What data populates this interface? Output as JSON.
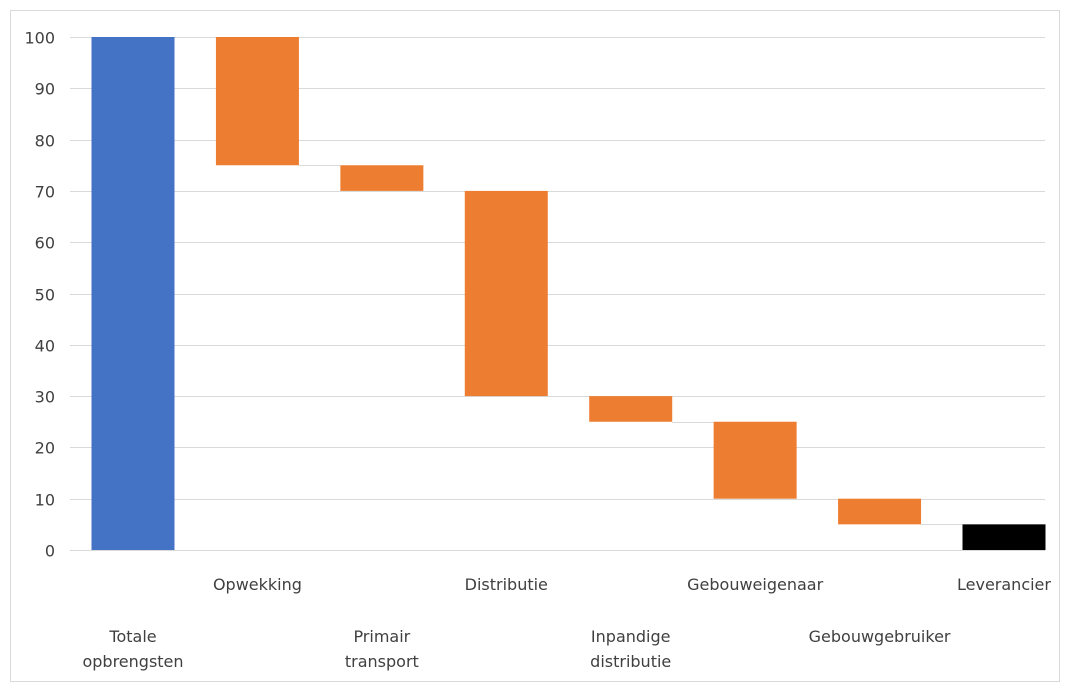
{
  "chart_data": {
    "type": "bar",
    "subtype": "waterfall",
    "categories": [
      "Totale opbrengsten",
      "Opwekking",
      "Primair transport",
      "Distributie",
      "Inpandige distributie",
      "Gebouweigenaar",
      "Gebouwgebruiker",
      "Leverancier"
    ],
    "category_label_lines": [
      [
        "Totale",
        "opbrengsten"
      ],
      [
        "Opwekking"
      ],
      [
        "Primair",
        "transport"
      ],
      [
        "Distributie"
      ],
      [
        "Inpandige",
        "distributie"
      ],
      [
        "Gebouweigenaar"
      ],
      [
        "Gebouwgebruiker"
      ],
      [
        "Leverancier"
      ]
    ],
    "bars": [
      {
        "low": 0,
        "high": 100,
        "kind": "total"
      },
      {
        "low": 75,
        "high": 100,
        "kind": "decrease"
      },
      {
        "low": 70,
        "high": 75,
        "kind": "decrease"
      },
      {
        "low": 30,
        "high": 70,
        "kind": "decrease"
      },
      {
        "low": 25,
        "high": 30,
        "kind": "decrease"
      },
      {
        "low": 10,
        "high": 25,
        "kind": "decrease"
      },
      {
        "low": 5,
        "high": 10,
        "kind": "decrease"
      },
      {
        "low": 0,
        "high": 5,
        "kind": "final"
      }
    ],
    "title": "",
    "xlabel": "",
    "ylabel": "",
    "ylim": [
      0,
      100
    ],
    "yticks": [
      0,
      10,
      20,
      30,
      40,
      50,
      60,
      70,
      80,
      90,
      100
    ],
    "grid": true,
    "legend": "none",
    "colors": {
      "total": "#4472c4",
      "decrease": "#ed7d31",
      "final": "#000000",
      "grid": "#d9d9d9",
      "text": "#404040"
    }
  }
}
